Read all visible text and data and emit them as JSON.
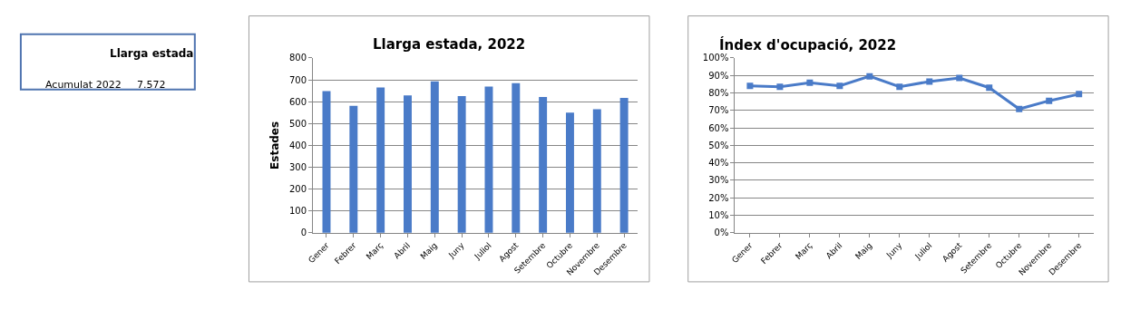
{
  "chart_data": [
    {
      "type": "other",
      "title": "Llarga estada",
      "annotations": [
        "Acumulat 2022",
        "7.572"
      ]
    },
    {
      "type": "bar",
      "title": "Llarga estada, 2022",
      "ylabel": "Estades",
      "color": "#4a7bc8",
      "categories": [
        "Gener",
        "Febrer",
        "Març",
        "Abril",
        "Maig",
        "Juny",
        "Juliol",
        "Agost",
        "Setembre",
        "Octubre",
        "Novembre",
        "Desembre"
      ],
      "values": [
        648,
        581,
        665,
        629,
        693,
        625,
        669,
        685,
        621,
        550,
        565,
        617
      ],
      "ylim": [
        0,
        800
      ],
      "yticks": [
        0,
        100,
        200,
        300,
        400,
        500,
        600,
        700,
        800
      ],
      "grid": "y"
    },
    {
      "type": "line",
      "title": "Índex d'ocupació, 2022",
      "color": "#4a7bc8",
      "marker": "square",
      "line_style": "solid",
      "categories": [
        "Gener",
        "Febrer",
        "Març",
        "Abril",
        "Maig",
        "Juny",
        "Juliol",
        "Agost",
        "Setembre",
        "Octubre",
        "Novembre",
        "Desembre"
      ],
      "values": [
        84,
        83.5,
        85.8,
        84,
        89.5,
        83.5,
        86.5,
        88.5,
        83,
        70.8,
        75.5,
        79.3
      ],
      "ylim": [
        0,
        100
      ],
      "yticks": [
        {
          "value": 0,
          "label": "0%"
        },
        {
          "value": 10,
          "label": "10%"
        },
        {
          "value": 20,
          "label": "20%"
        },
        {
          "value": 30,
          "label": "30%"
        },
        {
          "value": 40,
          "label": "40%"
        },
        {
          "value": 50,
          "label": "50%"
        },
        {
          "value": 60,
          "label": "60%"
        },
        {
          "value": 70,
          "label": "70%"
        },
        {
          "value": 80,
          "label": "80%"
        },
        {
          "value": 90,
          "label": "90%"
        },
        {
          "value": 100,
          "label": "100%"
        }
      ],
      "grid": "y"
    }
  ]
}
